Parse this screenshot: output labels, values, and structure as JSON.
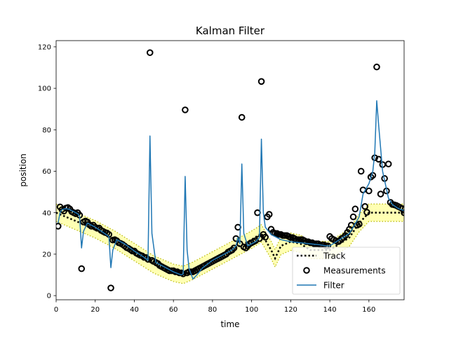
{
  "chart_data": {
    "type": "line",
    "title": "Kalman Filter",
    "xlabel": "time",
    "ylabel": "position",
    "xlim": [
      0,
      178
    ],
    "ylim": [
      -2,
      123
    ],
    "xticks": [
      0,
      20,
      40,
      60,
      80,
      100,
      120,
      140,
      160
    ],
    "yticks": [
      0,
      20,
      40,
      60,
      80,
      100,
      120
    ],
    "grid": false,
    "legend_position": "lower-right",
    "colors": {
      "track": "#000000",
      "measurements": "#000000",
      "filter": "#1f77b4",
      "band": "#ffff99",
      "band_edge": "#b5b500"
    },
    "series": [
      {
        "name": "Track",
        "style": "dotted",
        "x": [
          0,
          5,
          10,
          20,
          30,
          40,
          50,
          60,
          65,
          70,
          80,
          90,
          100,
          105,
          110,
          112,
          115,
          120,
          125,
          130,
          135,
          140,
          145,
          150,
          155,
          160,
          165,
          170,
          175,
          178
        ],
        "y": [
          40,
          38,
          36,
          32,
          27,
          21,
          15,
          11,
          10,
          12,
          17,
          22,
          27,
          30,
          22,
          18,
          24,
          26,
          25,
          22,
          22,
          22,
          25,
          28,
          35,
          40,
          40,
          40,
          40,
          40
        ]
      },
      {
        "name": "Measurements",
        "style": "markers",
        "x": [
          1,
          2,
          3,
          4,
          5,
          6,
          7,
          8,
          9,
          10,
          11,
          12,
          13,
          14,
          15,
          16,
          17,
          18,
          19,
          20,
          21,
          22,
          23,
          24,
          25,
          26,
          27,
          28,
          29,
          30,
          31,
          32,
          33,
          34,
          35,
          36,
          37,
          38,
          39,
          40,
          41,
          42,
          43,
          44,
          45,
          46,
          47,
          48,
          49,
          50,
          51,
          52,
          53,
          54,
          55,
          56,
          57,
          58,
          59,
          60,
          61,
          62,
          63,
          64,
          65,
          66,
          67,
          68,
          69,
          70,
          71,
          72,
          73,
          74,
          75,
          76,
          77,
          78,
          79,
          80,
          81,
          82,
          83,
          84,
          85,
          86,
          87,
          88,
          89,
          90,
          91,
          92,
          93,
          94,
          95,
          96,
          97,
          98,
          99,
          100,
          101,
          102,
          103,
          104,
          105,
          106,
          107,
          108,
          109,
          110,
          111,
          112,
          113,
          114,
          115,
          116,
          117,
          118,
          119,
          120,
          121,
          122,
          123,
          124,
          125,
          126,
          127,
          128,
          129,
          130,
          131,
          132,
          133,
          134,
          135,
          136,
          137,
          138,
          139,
          140,
          141,
          142,
          143,
          144,
          145,
          146,
          147,
          148,
          149,
          150,
          151,
          152,
          153,
          154,
          155,
          156,
          157,
          158,
          159,
          160,
          161,
          162,
          163,
          164,
          165,
          166,
          167,
          168,
          169,
          170,
          171,
          172,
          173,
          174,
          175,
          176,
          177,
          178
        ],
        "y": [
          33.5,
          42.8,
          41.5,
          40.8,
          42.2,
          42.5,
          41.8,
          40.5,
          40,
          39.5,
          40,
          38.8,
          13,
          35.5,
          36,
          35.5,
          34.2,
          33.5,
          34,
          33,
          32.5,
          32.6,
          31.5,
          31,
          30.5,
          30.2,
          29.5,
          3.7,
          26.8,
          27,
          26.5,
          25.5,
          25.2,
          24.7,
          24,
          23.2,
          22.8,
          22.2,
          21.5,
          21.5,
          20.5,
          20,
          19.5,
          19.2,
          18.5,
          18.4,
          17.5,
          117.2,
          17,
          16.5,
          16,
          15.5,
          14.5,
          14,
          13.5,
          13,
          12.5,
          12,
          12,
          12,
          11.5,
          11.5,
          11,
          11,
          10.5,
          89.6,
          11,
          11.5,
          11.5,
          11.5,
          12,
          12.5,
          13,
          13.5,
          14,
          14.5,
          15,
          15.5,
          16,
          16.5,
          17,
          17.5,
          18,
          18.5,
          19,
          19.5,
          20,
          21,
          21.5,
          22,
          23,
          27.5,
          33,
          25,
          86,
          23.5,
          23,
          24,
          25,
          25.5,
          26,
          26.5,
          40,
          27.5,
          103.3,
          29.5,
          28.2,
          38,
          39.2,
          32,
          30.5,
          30,
          30,
          29.5,
          29.5,
          29,
          29,
          29,
          28.5,
          28,
          28,
          27.5,
          27,
          27,
          27,
          27,
          26.5,
          26,
          26,
          25.5,
          25.5,
          25,
          25,
          25,
          24.5,
          24.5,
          24.5,
          24,
          24,
          28.5,
          27.5,
          27,
          26.5,
          26,
          26.5,
          27.5,
          28,
          29,
          30.5,
          32,
          34,
          38,
          41.8,
          34,
          34.5,
          60,
          51,
          43,
          40.2,
          50.5,
          57.2,
          58,
          66.5,
          110.3,
          65.8,
          49,
          63.2,
          56.5,
          50.5,
          63.5,
          45,
          44,
          43.8,
          43.5,
          43,
          42.5,
          42,
          40
        ],
        "linewidth": 0
      },
      {
        "name": "Filter",
        "style": "solid",
        "x": [
          1,
          2,
          3,
          5,
          7,
          9,
          11,
          12,
          13,
          14,
          16,
          20,
          24,
          27,
          28,
          29,
          31,
          35,
          40,
          45,
          47,
          48,
          49,
          51,
          55,
          60,
          64,
          65,
          66,
          67,
          68,
          70,
          72,
          75,
          80,
          85,
          90,
          92,
          93,
          94,
          95,
          96,
          98,
          100,
          102,
          104,
          105,
          106,
          107,
          110,
          112,
          115,
          120,
          125,
          130,
          135,
          138,
          140,
          145,
          150,
          152,
          155,
          157,
          160,
          162,
          163,
          164,
          165,
          167,
          170,
          172,
          175,
          178
        ],
        "y": [
          35,
          40,
          41.5,
          42,
          41.5,
          40.5,
          39.5,
          38.5,
          23,
          31,
          35,
          33,
          30.5,
          28.5,
          13.5,
          22,
          27,
          25,
          21.5,
          18.5,
          17,
          77,
          30,
          16,
          14,
          11.5,
          10,
          10.5,
          57.5,
          22,
          13,
          8,
          10,
          13.5,
          17,
          19.5,
          22,
          24,
          28,
          25,
          63.5,
          30,
          24,
          25,
          26,
          28,
          75.5,
          40,
          33,
          29.5,
          28.5,
          27,
          26,
          25.5,
          25,
          24.5,
          24,
          24,
          27,
          30,
          33,
          38,
          49,
          54,
          60,
          69,
          94,
          82,
          60,
          47,
          44,
          42,
          41
        ]
      }
    ]
  }
}
